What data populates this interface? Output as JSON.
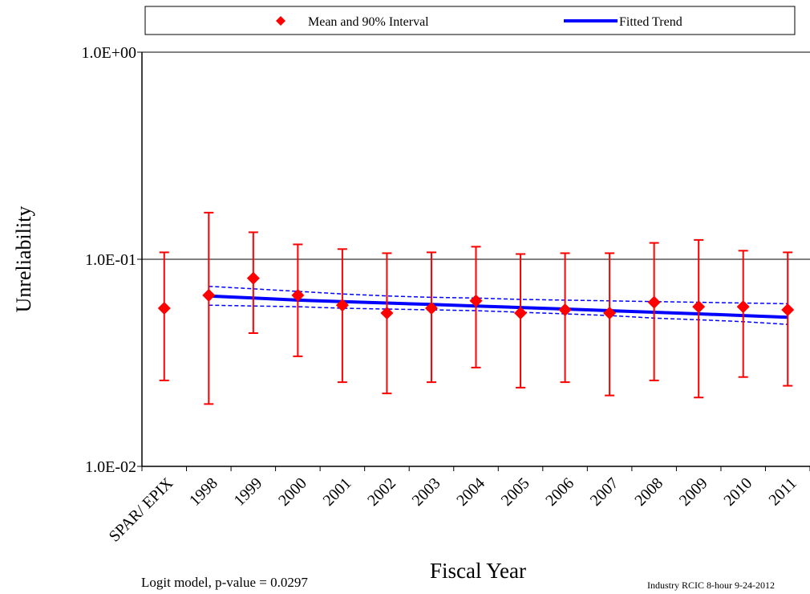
{
  "chart_data": {
    "type": "scatter",
    "title": "",
    "xlabel": "Fiscal Year",
    "ylabel": "Unreliability",
    "yscale": "log",
    "ylim": [
      0.01,
      1.0
    ],
    "y_ticks": [
      {
        "value": 1.0,
        "label": "1.0E+00"
      },
      {
        "value": 0.1,
        "label": "1.0E-01"
      },
      {
        "value": 0.01,
        "label": "1.0E-02"
      }
    ],
    "grid": "horizontal at major ticks",
    "categories": [
      "SPAR/ EPIX",
      "1998",
      "1999",
      "2000",
      "2001",
      "2002",
      "2003",
      "2004",
      "2005",
      "2006",
      "2007",
      "2008",
      "2009",
      "2010",
      "2011"
    ],
    "legend": {
      "placement": "top",
      "entries": [
        {
          "label": "Mean and 90% Interval",
          "marker": "diamond",
          "color": "#ff0000"
        },
        {
          "label": "Fitted Trend",
          "marker": "line",
          "color": "#0000ff"
        }
      ]
    },
    "series": [
      {
        "name": "Mean and 90% Interval",
        "color": "#ff0000",
        "mean": [
          0.058,
          0.067,
          0.081,
          0.067,
          0.06,
          0.055,
          0.058,
          0.063,
          0.055,
          0.057,
          0.055,
          0.062,
          0.059,
          0.059,
          0.057
        ],
        "lower": [
          0.026,
          0.02,
          0.044,
          0.034,
          0.0255,
          0.0225,
          0.0255,
          0.03,
          0.024,
          0.0255,
          0.022,
          0.026,
          0.0215,
          0.027,
          0.0245
        ],
        "upper": [
          0.108,
          0.168,
          0.135,
          0.118,
          0.112,
          0.107,
          0.108,
          0.115,
          0.106,
          0.107,
          0.107,
          0.12,
          0.124,
          0.11,
          0.108
        ]
      },
      {
        "name": "Fitted Trend",
        "color": "#0000ff",
        "x_start_index": 1,
        "values": [
          0.0665,
          0.065,
          0.0635,
          0.0625,
          0.0615,
          0.0605,
          0.0595,
          0.0585,
          0.0575,
          0.0565,
          0.0555,
          0.0545,
          0.0535,
          0.0525
        ],
        "upper": [
          0.074,
          0.072,
          0.07,
          0.068,
          0.0665,
          0.0655,
          0.065,
          0.064,
          0.0635,
          0.063,
          0.0625,
          0.062,
          0.0615,
          0.061
        ],
        "lower": [
          0.06,
          0.0595,
          0.059,
          0.058,
          0.0575,
          0.057,
          0.0565,
          0.0555,
          0.0545,
          0.0535,
          0.052,
          0.051,
          0.05,
          0.0485
        ]
      }
    ],
    "annotations": [
      {
        "text": "Logit model, p-value = 0.0297"
      },
      {
        "text": "Industry RCIC 8-hour 9-24-2012"
      }
    ]
  }
}
